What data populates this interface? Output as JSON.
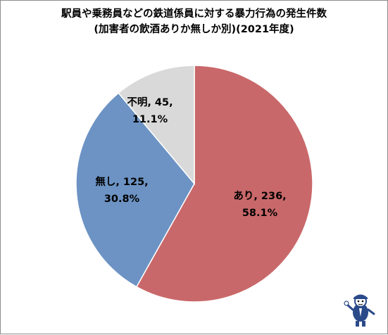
{
  "chart_data": {
    "type": "pie",
    "title": "駅員や乗務員などの鉄道係員に対する暴力行為の発生件数",
    "subtitle": "(加害者の飲酒ありか無しか別)(2021年度)",
    "slices": [
      {
        "label": "あり",
        "value": 236,
        "percent": "58.1%",
        "color": "#c9686a"
      },
      {
        "label": "無し",
        "value": 125,
        "percent": "30.8%",
        "color": "#6c93c4"
      },
      {
        "label": "不明",
        "value": 45,
        "percent": "11.1%",
        "color": "#d9d9d9"
      }
    ],
    "start_angle": "12 o'clock",
    "direction": "clockwise",
    "slice_border": "#ffffff"
  },
  "icons": {
    "mascot": "mascot-icon"
  }
}
